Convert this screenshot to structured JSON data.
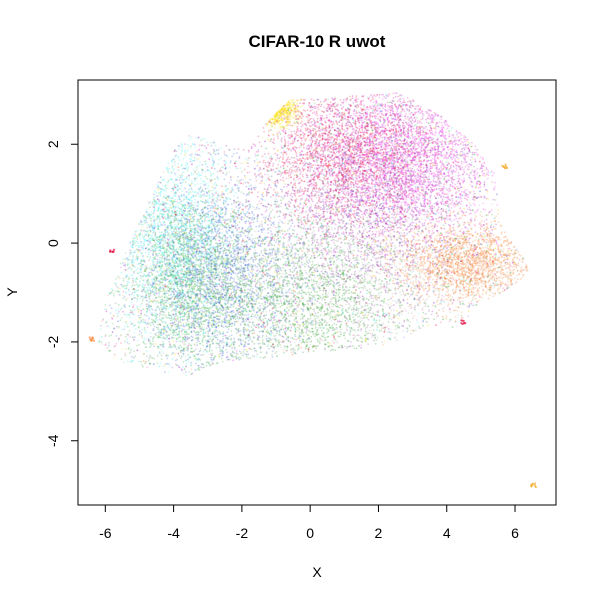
{
  "chart_data": {
    "type": "scatter",
    "title": "CIFAR-10 R uwot",
    "xlabel": "X",
    "ylabel": "Y",
    "xlim": [
      -6.8,
      7.2
    ],
    "ylim": [
      -5.3,
      3.3
    ],
    "xticks": [
      "-6",
      "-4",
      "-2",
      "0",
      "2",
      "4",
      "6"
    ],
    "yticks": [
      "-4",
      "-2",
      "0",
      "2"
    ],
    "grid": false,
    "legend": "none",
    "colors": [
      "#e6194b",
      "#f58231",
      "#ffe119",
      "#3cb44b",
      "#46f0f0",
      "#4363d8",
      "#911eb4",
      "#f032e6",
      "#a9a9a9",
      "#2ca02c"
    ],
    "series": [
      {
        "color": "#3cb44b",
        "density": 2200,
        "center": [
          -3.6,
          -0.8
        ],
        "spread": [
          0.9,
          0.9
        ]
      },
      {
        "color": "#46f0f0",
        "density": 1600,
        "center": [
          -4.0,
          0.2
        ],
        "spread": [
          0.9,
          1.1
        ]
      },
      {
        "color": "#4363d8",
        "density": 2200,
        "center": [
          -2.6,
          -0.6
        ],
        "spread": [
          1.2,
          1.0
        ]
      },
      {
        "color": "#2ca02c",
        "density": 1600,
        "center": [
          -0.3,
          -1.2
        ],
        "spread": [
          1.4,
          0.8
        ]
      },
      {
        "color": "#911eb4",
        "density": 2200,
        "center": [
          2.0,
          1.2
        ],
        "spread": [
          1.5,
          1.0
        ]
      },
      {
        "color": "#f032e6",
        "density": 2600,
        "center": [
          2.6,
          1.7
        ],
        "spread": [
          1.4,
          0.8
        ]
      },
      {
        "color": "#e6194b",
        "density": 1800,
        "center": [
          1.0,
          1.8
        ],
        "spread": [
          1.3,
          0.7
        ]
      },
      {
        "color": "#f58231",
        "density": 1800,
        "center": [
          4.6,
          -0.4
        ],
        "spread": [
          1.0,
          0.4
        ]
      },
      {
        "color": "#a9a9a9",
        "density": 1400,
        "center": [
          1.2,
          -0.6
        ],
        "spread": [
          1.6,
          1.0
        ]
      },
      {
        "color": "#ffe119",
        "density": 400,
        "center": [
          -1.0,
          2.7
        ],
        "spread": [
          0.3,
          0.15
        ]
      }
    ],
    "outliers": [
      {
        "x": 6.55,
        "y": -4.9,
        "color": "#f5a623"
      },
      {
        "x": 5.7,
        "y": 1.55,
        "color": "#f5a623"
      },
      {
        "x": -5.8,
        "y": -0.15,
        "color": "#e6194b"
      },
      {
        "x": -6.4,
        "y": -1.95,
        "color": "#f58231"
      },
      {
        "x": 4.5,
        "y": -1.6,
        "color": "#e6194b"
      }
    ]
  }
}
